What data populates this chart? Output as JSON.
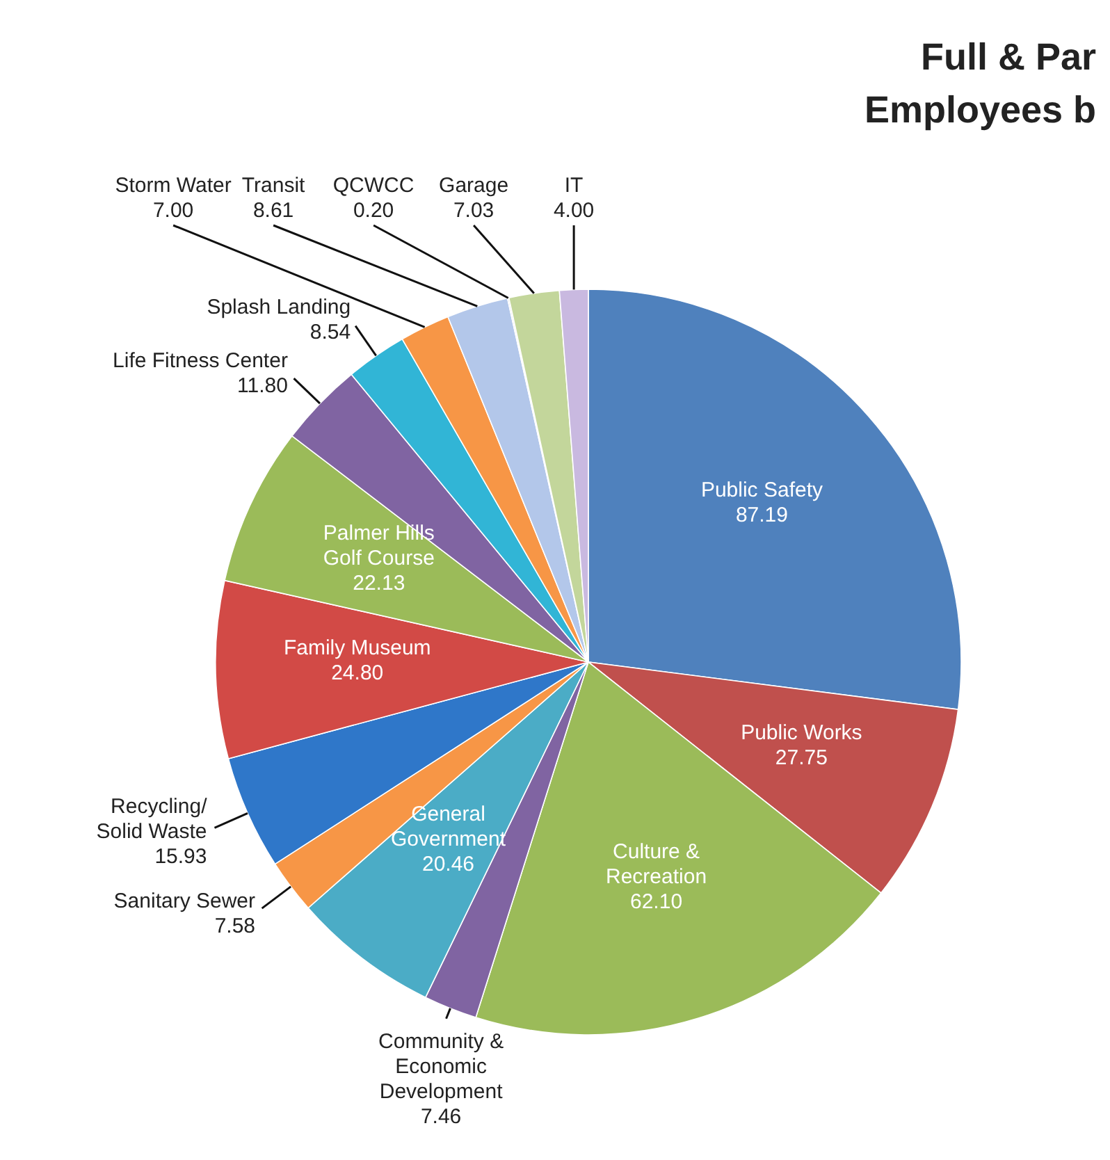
{
  "chart_data": {
    "type": "pie",
    "title": "Full & Par",
    "subtitle": "Employees b",
    "categories": [
      "Public Safety",
      "Public Works",
      "Culture &\nRecreation",
      "Community &\nEconomic\nDevelopment",
      "General\nGovernment",
      "Sanitary Sewer",
      "Recycling/\nSolid Waste",
      "Family Museum",
      "Palmer Hills\nGolf Course",
      "Life Fitness Center",
      "Splash Landing",
      "Storm Water",
      "Transit",
      "QCWCC",
      "Garage",
      "IT"
    ],
    "values": [
      87.19,
      27.75,
      62.1,
      7.46,
      20.46,
      7.58,
      15.93,
      24.8,
      22.13,
      11.8,
      8.54,
      7.0,
      8.61,
      0.2,
      7.03,
      4.0
    ],
    "value_labels": [
      "87.19",
      "27.75",
      "62.10",
      "7.46",
      "20.46",
      "7.58",
      "15.93",
      "24.80",
      "22.13",
      "11.80",
      "8.54",
      "7.00",
      "8.61",
      "0.20",
      "7.03",
      "4.00"
    ],
    "colors": [
      "#4f81bd",
      "#c0504d",
      "#9bbb59",
      "#8064a2",
      "#4bacc6",
      "#f79646",
      "#2f77c9",
      "#d24a46",
      "#9bbb59",
      "#8064a2",
      "#31b5d6",
      "#f79646",
      "#b3c7ea",
      "#d9d9d9",
      "#c3d69b",
      "#c9b9e0"
    ]
  }
}
